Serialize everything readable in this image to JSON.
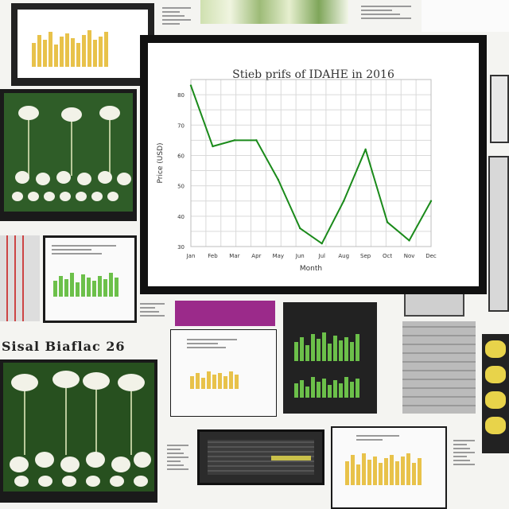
{
  "colors": {
    "line": "#1a8a1a",
    "grid": "#d9d9d9",
    "monitor_frame": "#111111",
    "plant_bg": "#2f5d28",
    "bar_yellow": "#e8c24a",
    "bar_green": "#6cc04a",
    "magenta": "#9b2a8a"
  },
  "chart_data": {
    "type": "line",
    "title": "Stieb prifs of IDAHE in 2016",
    "xlabel": "Month",
    "ylabel": "Price (USD)",
    "categories": [
      "Jan",
      "Feb",
      "Mar",
      "Apr",
      "May",
      "Jun",
      "Jul",
      "Aug",
      "Sep",
      "Oct",
      "Nov",
      "Dec"
    ],
    "x_tick_labels": [
      "Jan",
      "Feb",
      "Mar",
      "Apr",
      "May",
      "Jun",
      "Jul",
      "Aug",
      "Sep",
      "Oct",
      "Nov",
      "Dec"
    ],
    "y_tick_labels": [
      "30",
      "40",
      "50",
      "60",
      "70",
      "80"
    ],
    "ylim": [
      30,
      85
    ],
    "values": [
      83,
      63,
      65,
      65,
      52,
      36,
      31,
      45,
      62,
      38,
      32,
      45
    ],
    "grid": true,
    "legend": "none"
  },
  "collage": {
    "banner_text": "Sisal Biaflac 26"
  },
  "icons": [
    "chart-thumbnail-icon",
    "plant-photo-icon",
    "document-icon"
  ]
}
